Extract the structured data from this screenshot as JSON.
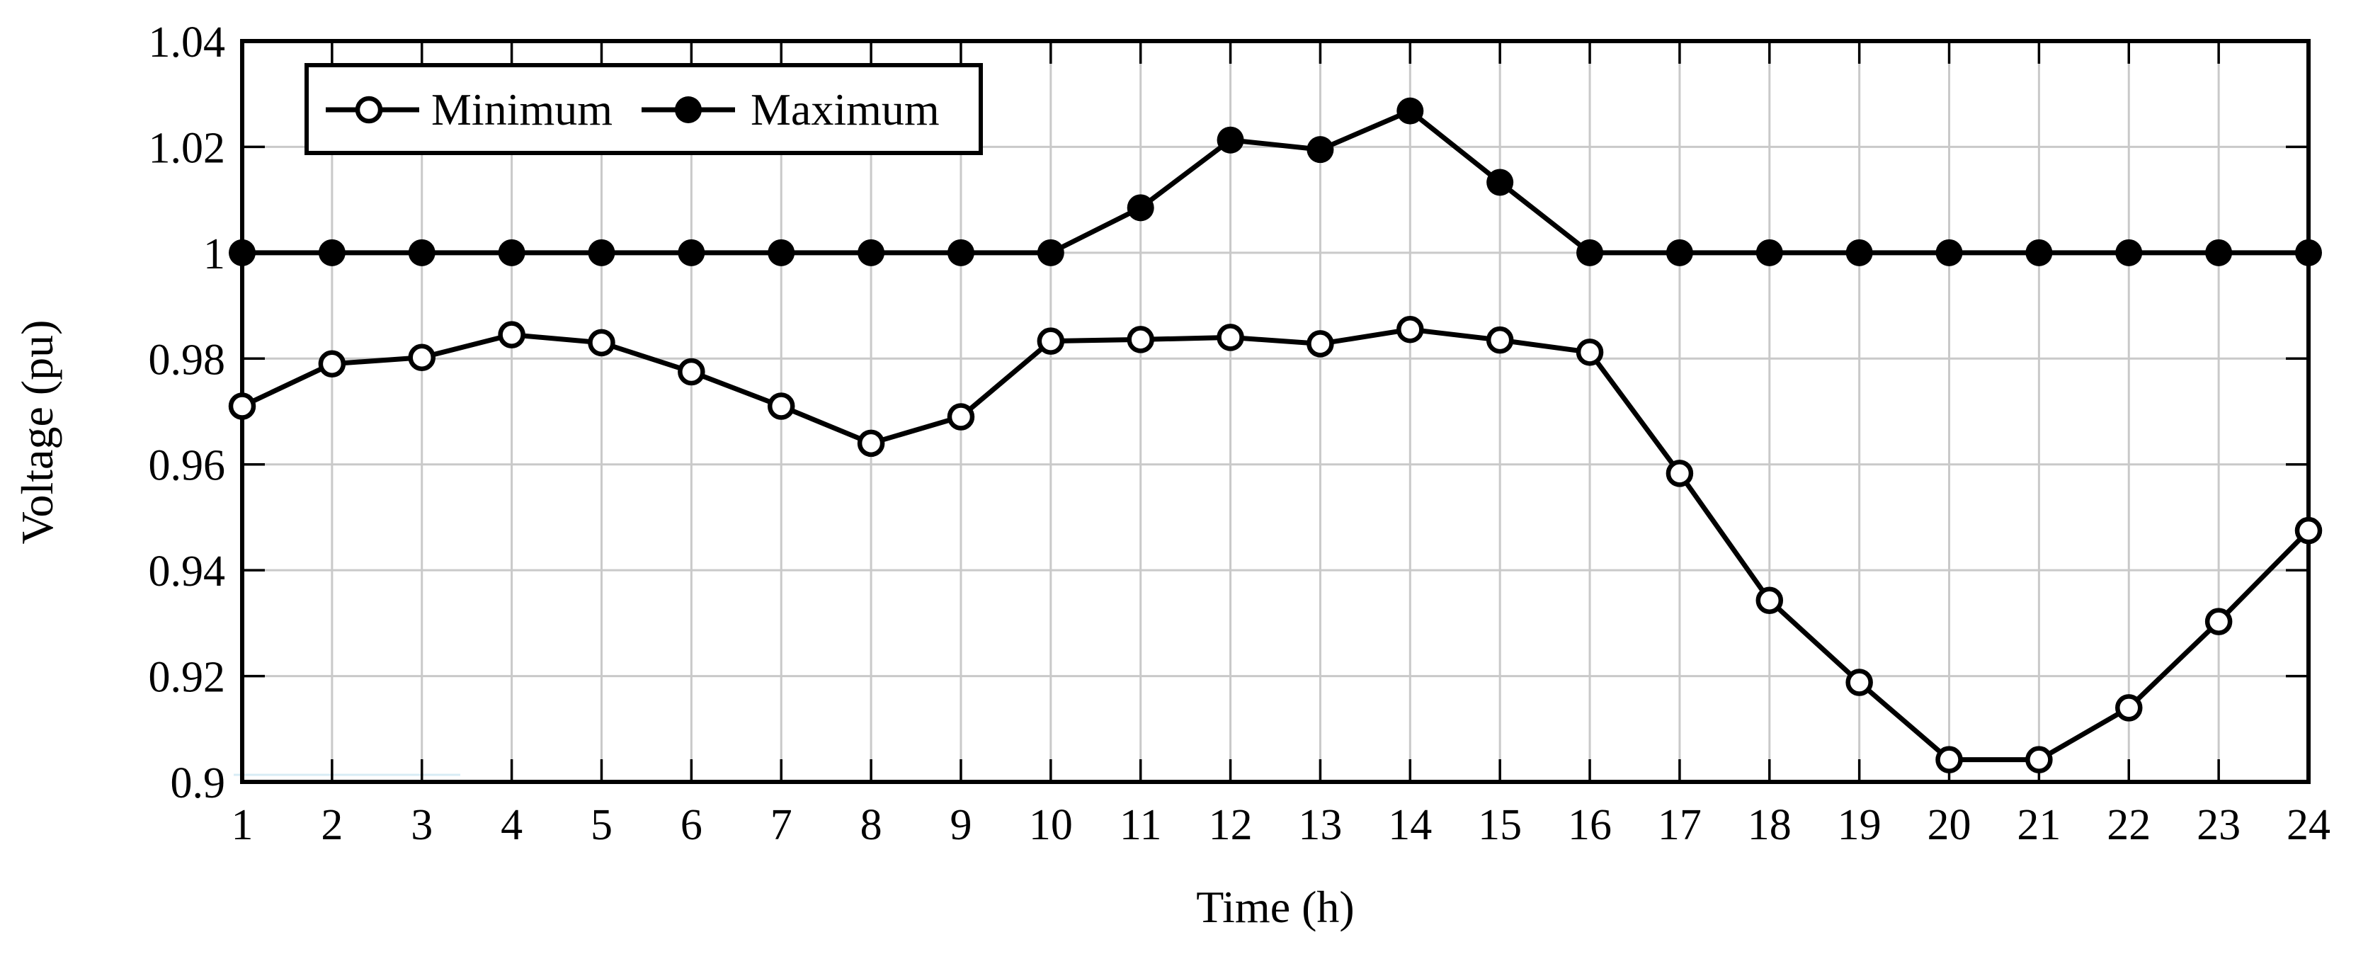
{
  "figure": {
    "background_color": "#ffffff"
  },
  "chart_data": {
    "type": "line",
    "title": "",
    "xlabel": "Time (h)",
    "ylabel": "Voltage (pu)",
    "xlim": [
      1,
      24
    ],
    "ylim": [
      0.9,
      1.04
    ],
    "grid": true,
    "legend_position": "top-left-inside",
    "x": [
      1,
      2,
      3,
      4,
      5,
      6,
      7,
      8,
      9,
      10,
      11,
      12,
      13,
      14,
      15,
      16,
      17,
      18,
      19,
      20,
      21,
      22,
      23,
      24
    ],
    "x_tick_labels": [
      "1",
      "2",
      "3",
      "4",
      "5",
      "6",
      "7",
      "8",
      "9",
      "10",
      "11",
      "12",
      "13",
      "14",
      "15",
      "16",
      "17",
      "18",
      "19",
      "20",
      "21",
      "22",
      "23",
      "24"
    ],
    "y_ticks": [
      0.9,
      0.92,
      0.94,
      0.96,
      0.98,
      1.0,
      1.02,
      1.04
    ],
    "y_tick_labels": [
      "0.9",
      "0.92",
      "0.94",
      "0.96",
      "0.98",
      "1",
      "1.02",
      "1.04"
    ],
    "series": [
      {
        "name": "Minimum",
        "marker": "open-circle",
        "color": "#000000",
        "values": [
          0.971,
          0.979,
          0.9802,
          0.9845,
          0.983,
          0.9775,
          0.971,
          0.964,
          0.969,
          0.9833,
          0.9836,
          0.984,
          0.9828,
          0.9855,
          0.9835,
          0.9812,
          0.9583,
          0.9343,
          0.9188,
          0.9042,
          0.9042,
          0.914,
          0.9303,
          0.9475
        ]
      },
      {
        "name": "Maximum",
        "marker": "filled-circle",
        "color": "#000000",
        "values": [
          1.0,
          1.0,
          1.0,
          1.0,
          1.0,
          1.0,
          1.0,
          1.0,
          1.0,
          1.0,
          1.0085,
          1.0213,
          1.0195,
          1.0268,
          1.0133,
          1.0,
          1.0,
          1.0,
          1.0,
          1.0,
          1.0,
          1.0,
          1.0,
          1.0
        ]
      }
    ],
    "colors": {
      "line": "#000000",
      "grid": "#c9c9c9",
      "tick": "#000000",
      "border": "#000000",
      "background": "#ffffff"
    }
  }
}
